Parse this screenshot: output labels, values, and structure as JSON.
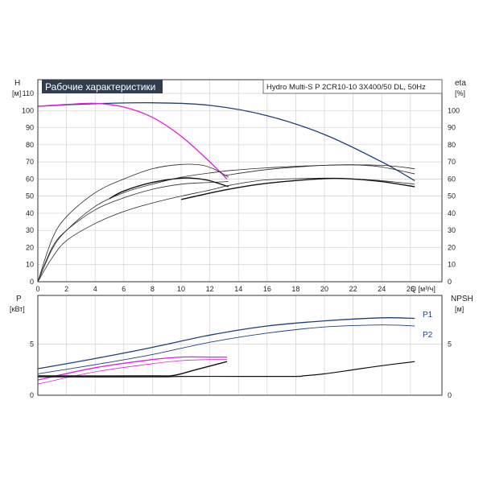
{
  "chart_data": {
    "type": "line",
    "title_box": "Рабочие характеристики",
    "model": "Hydro Multi-S P 2CR10-10 3X400/50 DL, 50Hz",
    "top": {
      "y_left_label": "H",
      "y_left_unit": "[м]",
      "y_right_label": "eta",
      "y_right_unit": "[%]",
      "x_label": "Q [м³/ч]",
      "x_ticks": [
        0,
        2,
        4,
        6,
        8,
        10,
        12,
        14,
        16,
        18,
        20,
        22,
        24,
        26
      ],
      "x_range": [
        0,
        28.2
      ],
      "y_ticks": [
        0,
        10,
        20,
        30,
        40,
        50,
        60,
        70,
        80,
        90,
        100,
        110
      ],
      "y_range": [
        0,
        118
      ],
      "y_right_ticks": [
        0,
        10,
        20,
        30,
        40,
        50,
        60,
        70,
        80,
        90,
        100
      ],
      "series": [
        {
          "color": "#1f3f7a",
          "width": 1.3,
          "x": [
            0,
            4,
            8,
            12,
            16,
            20,
            24,
            26.3
          ],
          "y": [
            102.5,
            104,
            104.5,
            103,
            97,
            86,
            70,
            59
          ]
        },
        {
          "color": "#e020e0",
          "width": 1.3,
          "x": [
            0,
            2,
            4,
            6,
            8,
            10,
            12,
            13.2
          ],
          "y": [
            102.5,
            103.5,
            104.2,
            102,
            96,
            85,
            70,
            60
          ]
        },
        {
          "color": "#2a2a2a",
          "width": 0.8,
          "x": [
            0,
            1,
            2,
            4,
            6,
            8,
            10,
            11.5,
            12.5,
            13.3
          ],
          "y": [
            0,
            25,
            38,
            52,
            60,
            66,
            68.5,
            68,
            65,
            61
          ]
        },
        {
          "color": "#2a2a2a",
          "width": 0.8,
          "x": [
            0,
            1,
            2,
            4,
            6,
            8,
            10,
            12,
            13.3
          ],
          "y": [
            0,
            20,
            30,
            42,
            49,
            54,
            57,
            58,
            58.5
          ]
        },
        {
          "color": "#111111",
          "width": 1.4,
          "x": [
            5,
            6,
            8,
            10,
            11,
            12,
            13.3
          ],
          "y": [
            48.5,
            53,
            58,
            60.5,
            60.3,
            59,
            55.5
          ]
        },
        {
          "color": "#2a2a2a",
          "width": 0.8,
          "x": [
            0,
            1,
            2,
            4,
            6,
            8,
            10,
            12,
            13.5,
            16,
            20,
            22,
            24,
            26.3
          ],
          "y": [
            0,
            14,
            24,
            34,
            41,
            46,
            50,
            53.5,
            56.5,
            59.5,
            60.5,
            60,
            59,
            57
          ]
        },
        {
          "color": "#2a2a2a",
          "width": 0.8,
          "x": [
            13,
            16,
            20,
            22,
            24,
            26.3
          ],
          "y": [
            62,
            65.5,
            68,
            68.3,
            67,
            63
          ]
        },
        {
          "color": "#111111",
          "width": 1.4,
          "x": [
            10,
            13,
            16,
            20,
            22,
            24,
            26.3
          ],
          "y": [
            48,
            53.5,
            57.5,
            60.2,
            60,
            58.5,
            55.5
          ]
        },
        {
          "color": "#2a2a2a",
          "width": 0.8,
          "x": [
            0,
            1,
            2,
            4,
            6,
            8,
            10,
            12,
            13.5,
            16,
            20,
            24,
            26.3
          ],
          "y": [
            0,
            19,
            30,
            44,
            52,
            57,
            61,
            63.5,
            65,
            66.5,
            68,
            68,
            66
          ]
        }
      ]
    },
    "bottom": {
      "y_left_label": "P",
      "y_left_unit": "[кВт]",
      "y_right_label": "NPSH",
      "y_right_unit": "[м]",
      "y_ticks": [
        0,
        5
      ],
      "y_range": [
        0,
        9.8
      ],
      "y_right_ticks": [
        0,
        5
      ],
      "series": [
        {
          "name": "P1",
          "color": "#1f3f7a",
          "width": 1.3,
          "x": [
            0,
            4,
            8,
            12,
            16,
            20,
            24,
            26.3
          ],
          "y": [
            2.6,
            3.6,
            4.7,
            5.9,
            6.8,
            7.3,
            7.6,
            7.55
          ]
        },
        {
          "name": "P2",
          "color": "#1f3f7a",
          "width": 0.9,
          "x": [
            0,
            4,
            8,
            12,
            16,
            20,
            24,
            26.3
          ],
          "y": [
            2.1,
            3.0,
            4.0,
            5.2,
            6.1,
            6.7,
            6.9,
            6.8
          ]
        },
        {
          "color": "#e020e0",
          "width": 1.3,
          "x": [
            0,
            4,
            8,
            10,
            12,
            13.2
          ],
          "y": [
            1.5,
            2.7,
            3.5,
            3.75,
            3.75,
            3.75
          ]
        },
        {
          "color": "#e020e0",
          "width": 0.8,
          "x": [
            0,
            4,
            8,
            10,
            12,
            13.2
          ],
          "y": [
            1.1,
            2.3,
            3.1,
            3.4,
            3.5,
            3.5
          ]
        },
        {
          "color": "#111111",
          "width": 1.4,
          "x": [
            0,
            8,
            9.5,
            11,
            13.2
          ],
          "y": [
            1.9,
            1.9,
            1.95,
            2.5,
            3.3
          ]
        },
        {
          "color": "#111111",
          "width": 1.2,
          "x": [
            0,
            8,
            10,
            14,
            18,
            18.5,
            20,
            22,
            24,
            26.3
          ],
          "y": [
            1.8,
            1.8,
            1.85,
            1.85,
            1.85,
            1.9,
            2.1,
            2.5,
            2.9,
            3.3
          ]
        }
      ]
    }
  }
}
